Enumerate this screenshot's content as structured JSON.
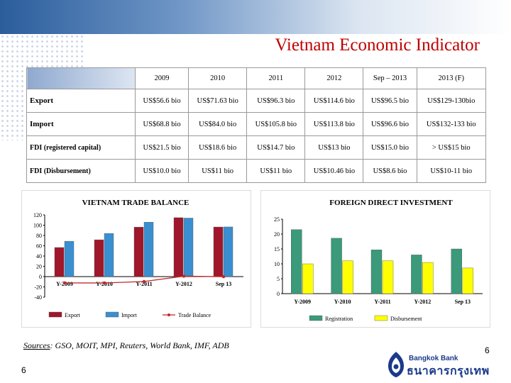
{
  "page": {
    "title": "Vietnam Economic Indicator",
    "page_number_left": "6",
    "page_number_right": "6"
  },
  "table": {
    "columns": [
      "2009",
      "2010",
      "2011",
      "2012",
      "Sep – 2013",
      "2013 (F)"
    ],
    "rows": [
      {
        "label": "Export",
        "values": [
          "US$56.6 bio",
          "US$71.63 bio",
          "US$96.3 bio",
          "US$114.6 bio",
          "US$96.5 bio",
          "US$129-130bio"
        ]
      },
      {
        "label": "Import",
        "values": [
          "US$68.8 bio",
          "US$84.0 bio",
          "US$105.8 bio",
          "US$113.8 bio",
          "US$96.6 bio",
          "US$132-133 bio"
        ]
      },
      {
        "label": "FDI (registered capital)",
        "values": [
          "US$21.5 bio",
          "US$18.6 bio",
          "US$14.7 bio",
          "US$13 bio",
          "US$15.0 bio",
          "> US$15 bio"
        ]
      },
      {
        "label": "FDI (Disbursement)",
        "values": [
          "US$10.0 bio",
          "US$11 bio",
          "US$11 bio",
          "US$10.46 bio",
          "US$8.6 bio",
          "US$10-11 bio"
        ]
      }
    ]
  },
  "chart_data": [
    {
      "type": "bar",
      "title": "VIETNAM TRADE BALANCE",
      "categories": [
        "Y-2009",
        "Y-2010",
        "Y-2011",
        "Y-2012",
        "Sep 13"
      ],
      "series": [
        {
          "name": "Export",
          "values": [
            56.6,
            71.63,
            96.3,
            114.6,
            96.5
          ],
          "color": "#a0162a"
        },
        {
          "name": "Import",
          "values": [
            68.8,
            84.0,
            105.8,
            113.8,
            96.6
          ],
          "color": "#3a8fd0"
        },
        {
          "name": "Trade Balance",
          "values": [
            -12.2,
            -12.4,
            -9.5,
            0.8,
            -0.1
          ],
          "color": "#c0282a",
          "kind": "line"
        }
      ],
      "yticks": [
        "120",
        "100",
        "80",
        "60",
        "40",
        "20",
        "0",
        "-20",
        "-40"
      ],
      "ylim": [
        -40,
        120
      ],
      "legend": "bottom"
    },
    {
      "type": "bar",
      "title": "FOREIGN DIRECT INVESTMENT",
      "categories": [
        "Y-2009",
        "Y-2010",
        "Y-2011",
        "Y-2012",
        "Sep 13"
      ],
      "series": [
        {
          "name": "Registration",
          "values": [
            21.5,
            18.6,
            14.7,
            13.0,
            15.0
          ],
          "color": "#3a9a7a"
        },
        {
          "name": "Disbursement",
          "values": [
            10.0,
            11.0,
            11.0,
            10.46,
            8.6
          ],
          "color": "#ffff00"
        }
      ],
      "yticks": [
        "25",
        "20",
        "15",
        "10",
        "5",
        "0"
      ],
      "ylim": [
        0,
        25
      ],
      "legend": "bottom"
    }
  ],
  "sources": {
    "label": "Sources",
    "text": ": GSO, MOIT, MPI, Reuters, World Bank, IMF, ADB"
  },
  "logo": {
    "english": "Bangkok Bank",
    "thai": "ธนาคารกรุงเทพ"
  }
}
